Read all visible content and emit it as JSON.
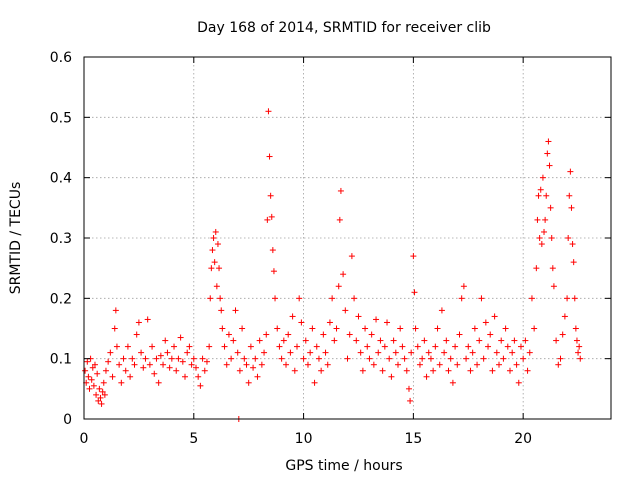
{
  "chart_data": {
    "type": "scatter",
    "title": "Day 168 of 2014, SRMTID for receiver clib",
    "xlabel": "GPS time / hours",
    "ylabel": "SRMTID / TECUs",
    "xlim": [
      0,
      24
    ],
    "ylim": [
      0,
      0.6
    ],
    "xticks": [
      0,
      5,
      10,
      15,
      20
    ],
    "xtick_labels": [
      "0",
      "5",
      "10",
      "15",
      "20"
    ],
    "yticks": [
      0,
      0.1,
      0.2,
      0.3,
      0.4,
      0.5,
      0.6
    ],
    "ytick_labels": [
      "0",
      "0.1",
      "0.2",
      "0.3",
      "0.4",
      "0.5",
      "0.6"
    ],
    "grid": true,
    "marker": "+",
    "color": "#ff0000",
    "series": [
      {
        "name": "SRMTID",
        "points": [
          [
            0.05,
            0.08
          ],
          [
            0.1,
            0.06
          ],
          [
            0.15,
            0.095
          ],
          [
            0.2,
            0.07
          ],
          [
            0.25,
            0.05
          ],
          [
            0.3,
            0.1
          ],
          [
            0.35,
            0.065
          ],
          [
            0.4,
            0.085
          ],
          [
            0.45,
            0.055
          ],
          [
            0.5,
            0.09
          ],
          [
            0.55,
            0.04
          ],
          [
            0.6,
            0.075
          ],
          [
            0.65,
            0.03
          ],
          [
            0.7,
            0.05
          ],
          [
            0.75,
            0.035
          ],
          [
            0.8,
            0.025
          ],
          [
            0.85,
            0.045
          ],
          [
            0.9,
            0.06
          ],
          [
            0.95,
            0.04
          ],
          [
            1.0,
            0.08
          ],
          [
            1.1,
            0.095
          ],
          [
            1.2,
            0.11
          ],
          [
            1.3,
            0.07
          ],
          [
            1.4,
            0.15
          ],
          [
            1.45,
            0.18
          ],
          [
            1.5,
            0.12
          ],
          [
            1.6,
            0.09
          ],
          [
            1.7,
            0.06
          ],
          [
            1.8,
            0.1
          ],
          [
            1.9,
            0.08
          ],
          [
            2.0,
            0.12
          ],
          [
            2.1,
            0.07
          ],
          [
            2.2,
            0.1
          ],
          [
            2.3,
            0.09
          ],
          [
            2.4,
            0.14
          ],
          [
            2.5,
            0.16
          ],
          [
            2.6,
            0.11
          ],
          [
            2.7,
            0.085
          ],
          [
            2.8,
            0.1
          ],
          [
            2.9,
            0.165
          ],
          [
            3.0,
            0.09
          ],
          [
            3.1,
            0.12
          ],
          [
            3.2,
            0.075
          ],
          [
            3.3,
            0.1
          ],
          [
            3.4,
            0.06
          ],
          [
            3.5,
            0.105
          ],
          [
            3.6,
            0.09
          ],
          [
            3.7,
            0.13
          ],
          [
            3.8,
            0.11
          ],
          [
            3.9,
            0.085
          ],
          [
            4.0,
            0.1
          ],
          [
            4.1,
            0.12
          ],
          [
            4.2,
            0.08
          ],
          [
            4.3,
            0.1
          ],
          [
            4.4,
            0.135
          ],
          [
            4.5,
            0.095
          ],
          [
            4.6,
            0.07
          ],
          [
            4.7,
            0.11
          ],
          [
            4.8,
            0.12
          ],
          [
            4.9,
            0.09
          ],
          [
            5.0,
            0.1
          ],
          [
            5.1,
            0.085
          ],
          [
            5.2,
            0.07
          ],
          [
            5.3,
            0.055
          ],
          [
            5.4,
            0.1
          ],
          [
            5.5,
            0.08
          ],
          [
            5.6,
            0.095
          ],
          [
            5.7,
            0.12
          ],
          [
            5.75,
            0.2
          ],
          [
            5.8,
            0.25
          ],
          [
            5.85,
            0.28
          ],
          [
            5.9,
            0.3
          ],
          [
            5.95,
            0.26
          ],
          [
            6.0,
            0.31
          ],
          [
            6.05,
            0.22
          ],
          [
            6.1,
            0.29
          ],
          [
            6.15,
            0.25
          ],
          [
            6.2,
            0.2
          ],
          [
            6.25,
            0.18
          ],
          [
            6.3,
            0.15
          ],
          [
            6.4,
            0.12
          ],
          [
            6.5,
            0.09
          ],
          [
            6.6,
            0.14
          ],
          [
            6.7,
            0.1
          ],
          [
            6.8,
            0.13
          ],
          [
            6.9,
            0.18
          ],
          [
            7.0,
            0.11
          ],
          [
            7.05,
            0.0
          ],
          [
            7.1,
            0.08
          ],
          [
            7.2,
            0.15
          ],
          [
            7.3,
            0.1
          ],
          [
            7.4,
            0.09
          ],
          [
            7.5,
            0.06
          ],
          [
            7.6,
            0.12
          ],
          [
            7.7,
            0.085
          ],
          [
            7.8,
            0.1
          ],
          [
            7.9,
            0.07
          ],
          [
            8.0,
            0.13
          ],
          [
            8.1,
            0.09
          ],
          [
            8.2,
            0.11
          ],
          [
            8.3,
            0.14
          ],
          [
            8.35,
            0.33
          ],
          [
            8.4,
            0.51
          ],
          [
            8.45,
            0.435
          ],
          [
            8.5,
            0.37
          ],
          [
            8.55,
            0.335
          ],
          [
            8.6,
            0.28
          ],
          [
            8.65,
            0.245
          ],
          [
            8.7,
            0.2
          ],
          [
            8.8,
            0.15
          ],
          [
            8.9,
            0.12
          ],
          [
            9.0,
            0.1
          ],
          [
            9.1,
            0.13
          ],
          [
            9.2,
            0.09
          ],
          [
            9.3,
            0.14
          ],
          [
            9.4,
            0.11
          ],
          [
            9.5,
            0.17
          ],
          [
            9.6,
            0.08
          ],
          [
            9.7,
            0.12
          ],
          [
            9.8,
            0.2
          ],
          [
            9.9,
            0.16
          ],
          [
            10.0,
            0.1
          ],
          [
            10.1,
            0.13
          ],
          [
            10.2,
            0.09
          ],
          [
            10.3,
            0.11
          ],
          [
            10.4,
            0.15
          ],
          [
            10.5,
            0.06
          ],
          [
            10.6,
            0.12
          ],
          [
            10.7,
            0.1
          ],
          [
            10.8,
            0.08
          ],
          [
            10.9,
            0.14
          ],
          [
            11.0,
            0.11
          ],
          [
            11.1,
            0.09
          ],
          [
            11.2,
            0.16
          ],
          [
            11.3,
            0.2
          ],
          [
            11.4,
            0.13
          ],
          [
            11.5,
            0.15
          ],
          [
            11.6,
            0.22
          ],
          [
            11.65,
            0.33
          ],
          [
            11.7,
            0.378
          ],
          [
            11.8,
            0.24
          ],
          [
            11.9,
            0.18
          ],
          [
            12.0,
            0.1
          ],
          [
            12.1,
            0.14
          ],
          [
            12.2,
            0.27
          ],
          [
            12.3,
            0.2
          ],
          [
            12.4,
            0.13
          ],
          [
            12.5,
            0.17
          ],
          [
            12.6,
            0.11
          ],
          [
            12.7,
            0.08
          ],
          [
            12.8,
            0.15
          ],
          [
            12.9,
            0.12
          ],
          [
            13.0,
            0.1
          ],
          [
            13.1,
            0.14
          ],
          [
            13.2,
            0.09
          ],
          [
            13.3,
            0.165
          ],
          [
            13.4,
            0.11
          ],
          [
            13.5,
            0.13
          ],
          [
            13.6,
            0.08
          ],
          [
            13.7,
            0.12
          ],
          [
            13.8,
            0.16
          ],
          [
            13.9,
            0.1
          ],
          [
            14.0,
            0.07
          ],
          [
            14.1,
            0.13
          ],
          [
            14.2,
            0.11
          ],
          [
            14.3,
            0.09
          ],
          [
            14.4,
            0.15
          ],
          [
            14.5,
            0.12
          ],
          [
            14.6,
            0.1
          ],
          [
            14.7,
            0.08
          ],
          [
            14.8,
            0.05
          ],
          [
            14.85,
            0.03
          ],
          [
            14.9,
            0.11
          ],
          [
            15.0,
            0.27
          ],
          [
            15.05,
            0.21
          ],
          [
            15.1,
            0.15
          ],
          [
            15.2,
            0.12
          ],
          [
            15.3,
            0.09
          ],
          [
            15.4,
            0.1
          ],
          [
            15.5,
            0.13
          ],
          [
            15.6,
            0.07
          ],
          [
            15.7,
            0.11
          ],
          [
            15.8,
            0.1
          ],
          [
            15.9,
            0.08
          ],
          [
            16.0,
            0.12
          ],
          [
            16.1,
            0.15
          ],
          [
            16.2,
            0.09
          ],
          [
            16.3,
            0.18
          ],
          [
            16.4,
            0.11
          ],
          [
            16.5,
            0.13
          ],
          [
            16.6,
            0.08
          ],
          [
            16.7,
            0.1
          ],
          [
            16.8,
            0.06
          ],
          [
            16.9,
            0.12
          ],
          [
            17.0,
            0.09
          ],
          [
            17.1,
            0.14
          ],
          [
            17.2,
            0.2
          ],
          [
            17.3,
            0.22
          ],
          [
            17.4,
            0.1
          ],
          [
            17.5,
            0.12
          ],
          [
            17.6,
            0.08
          ],
          [
            17.7,
            0.11
          ],
          [
            17.8,
            0.15
          ],
          [
            17.9,
            0.09
          ],
          [
            18.0,
            0.13
          ],
          [
            18.1,
            0.2
          ],
          [
            18.2,
            0.1
          ],
          [
            18.3,
            0.16
          ],
          [
            18.4,
            0.12
          ],
          [
            18.5,
            0.14
          ],
          [
            18.6,
            0.08
          ],
          [
            18.7,
            0.17
          ],
          [
            18.8,
            0.11
          ],
          [
            18.9,
            0.09
          ],
          [
            19.0,
            0.13
          ],
          [
            19.1,
            0.1
          ],
          [
            19.2,
            0.15
          ],
          [
            19.3,
            0.12
          ],
          [
            19.4,
            0.08
          ],
          [
            19.5,
            0.11
          ],
          [
            19.6,
            0.13
          ],
          [
            19.7,
            0.09
          ],
          [
            19.8,
            0.06
          ],
          [
            19.9,
            0.12
          ],
          [
            20.0,
            0.1
          ],
          [
            20.1,
            0.13
          ],
          [
            20.2,
            0.08
          ],
          [
            20.3,
            0.11
          ],
          [
            20.4,
            0.2
          ],
          [
            20.5,
            0.15
          ],
          [
            20.6,
            0.25
          ],
          [
            20.65,
            0.33
          ],
          [
            20.7,
            0.37
          ],
          [
            20.75,
            0.3
          ],
          [
            20.8,
            0.38
          ],
          [
            20.85,
            0.29
          ],
          [
            20.9,
            0.4
          ],
          [
            20.95,
            0.31
          ],
          [
            21.0,
            0.33
          ],
          [
            21.05,
            0.37
          ],
          [
            21.1,
            0.44
          ],
          [
            21.15,
            0.46
          ],
          [
            21.2,
            0.42
          ],
          [
            21.25,
            0.35
          ],
          [
            21.3,
            0.3
          ],
          [
            21.35,
            0.25
          ],
          [
            21.4,
            0.22
          ],
          [
            21.5,
            0.13
          ],
          [
            21.6,
            0.09
          ],
          [
            21.7,
            0.1
          ],
          [
            21.8,
            0.14
          ],
          [
            21.9,
            0.17
          ],
          [
            22.0,
            0.2
          ],
          [
            22.05,
            0.3
          ],
          [
            22.1,
            0.37
          ],
          [
            22.15,
            0.41
          ],
          [
            22.2,
            0.35
          ],
          [
            22.25,
            0.29
          ],
          [
            22.3,
            0.26
          ],
          [
            22.35,
            0.2
          ],
          [
            22.4,
            0.15
          ],
          [
            22.45,
            0.13
          ],
          [
            22.5,
            0.11
          ],
          [
            22.55,
            0.12
          ],
          [
            22.6,
            0.1
          ]
        ]
      }
    ]
  }
}
